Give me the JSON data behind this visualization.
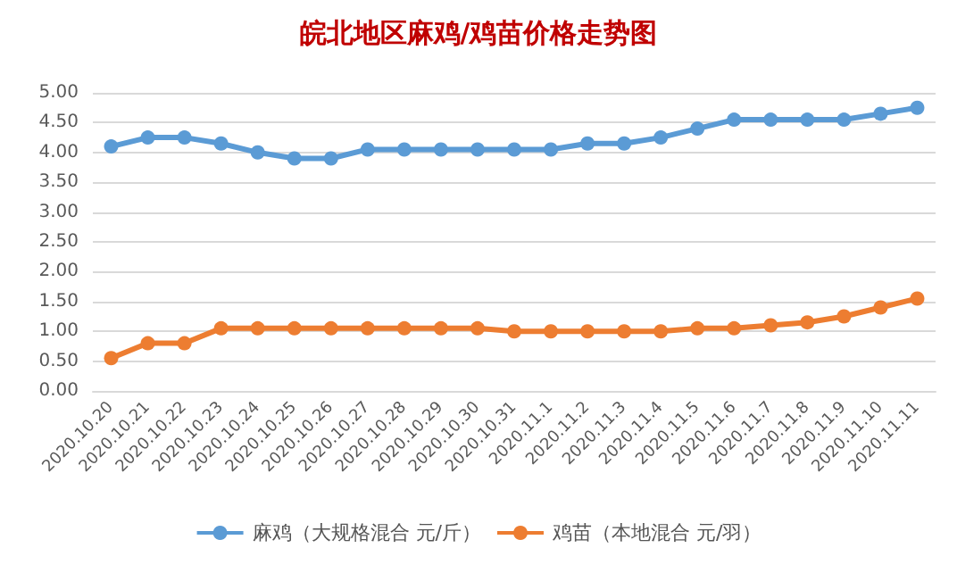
{
  "chart_data": {
    "type": "line",
    "title": "皖北地区麻鸡/鸡苗价格走势图",
    "categories": [
      "2020.10.20",
      "2020.10.21",
      "2020.10.22",
      "2020.10.23",
      "2020.10.24",
      "2020.10.25",
      "2020.10.26",
      "2020.10.27",
      "2020.10.28",
      "2020.10.29",
      "2020.10.30",
      "2020.10.31",
      "2020.11.1",
      "2020.11.2",
      "2020.11.3",
      "2020.11.4",
      "2020.11.5",
      "2020.11.6",
      "2020.11.7",
      "2020.11.8",
      "2020.11.9",
      "2020.11.10",
      "2020.11.11"
    ],
    "series": [
      {
        "name": "麻鸡（大规格混合 元/斤）",
        "color": "#5b9bd5",
        "values": [
          4.1,
          4.25,
          4.25,
          4.15,
          4.0,
          3.9,
          3.9,
          4.05,
          4.05,
          4.05,
          4.05,
          4.05,
          4.05,
          4.15,
          4.15,
          4.25,
          4.4,
          4.55,
          4.55,
          4.55,
          4.55,
          4.65,
          4.75
        ]
      },
      {
        "name": "鸡苗（本地混合 元/羽）",
        "color": "#ed7d31",
        "values": [
          0.55,
          0.8,
          0.8,
          1.05,
          1.05,
          1.05,
          1.05,
          1.05,
          1.05,
          1.05,
          1.05,
          1.0,
          1.0,
          1.0,
          1.0,
          1.0,
          1.05,
          1.05,
          1.1,
          1.15,
          1.25,
          1.4,
          1.55
        ]
      }
    ],
    "ylim": [
      0,
      5
    ],
    "yticks": [
      {
        "value": 0,
        "label": "0.00"
      },
      {
        "value": 0.5,
        "label": "0.50"
      },
      {
        "value": 1,
        "label": "1.00"
      },
      {
        "value": 1.5,
        "label": "1.50"
      },
      {
        "value": 2,
        "label": "2.00"
      },
      {
        "value": 2.5,
        "label": "2.50"
      },
      {
        "value": 3,
        "label": "3.00"
      },
      {
        "value": 3.5,
        "label": "3.50"
      },
      {
        "value": 4,
        "label": "4.00"
      },
      {
        "value": 4.5,
        "label": "4.50"
      },
      {
        "value": 5,
        "label": "5.00"
      }
    ],
    "grid": "y",
    "legend": "bottom",
    "marker": "circle",
    "line_style": "solid"
  }
}
